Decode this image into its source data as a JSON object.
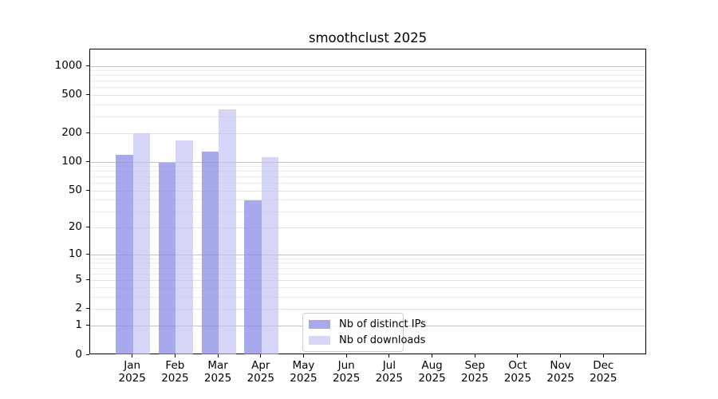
{
  "chart_data": {
    "type": "bar",
    "title": "smoothclust 2025",
    "categories": [
      "Jan 2025",
      "Feb 2025",
      "Mar 2025",
      "Apr 2025",
      "May 2025",
      "Jun 2025",
      "Jul 2025",
      "Aug 2025",
      "Sep 2025",
      "Oct 2025",
      "Nov 2025",
      "Dec 2025"
    ],
    "months": [
      "Jan",
      "Feb",
      "Mar",
      "Apr",
      "May",
      "Jun",
      "Jul",
      "Aug",
      "Sep",
      "Oct",
      "Nov",
      "Dec"
    ],
    "year": "2025",
    "series": [
      {
        "name": "Nb of distinct IPs",
        "color": "rgba(135,135,230,0.72)",
        "values": [
          120,
          98,
          130,
          40,
          null,
          null,
          null,
          null,
          null,
          null,
          null,
          null
        ]
      },
      {
        "name": "Nb of downloads",
        "color": "rgba(190,190,242,0.65)",
        "values": [
          200,
          170,
          355,
          113,
          null,
          null,
          null,
          null,
          null,
          null,
          null,
          null
        ]
      }
    ],
    "yscale": "log1p",
    "ylim": [
      0,
      1500
    ],
    "y_ticks": [
      0,
      1,
      2,
      5,
      10,
      20,
      50,
      100,
      200,
      500,
      1000
    ],
    "y_minor_gridlines": [
      2,
      3,
      4,
      5,
      6,
      7,
      8,
      9,
      20,
      30,
      40,
      50,
      60,
      70,
      80,
      90,
      200,
      300,
      400,
      500,
      600,
      700,
      800,
      900
    ],
    "grid": "horizontal",
    "legend_position": "lower center (inside axes)",
    "colors": {
      "grid_major": "#c3c3c3",
      "grid_minor": "#ececec",
      "axis": "#000000",
      "background": "#ffffff"
    }
  }
}
